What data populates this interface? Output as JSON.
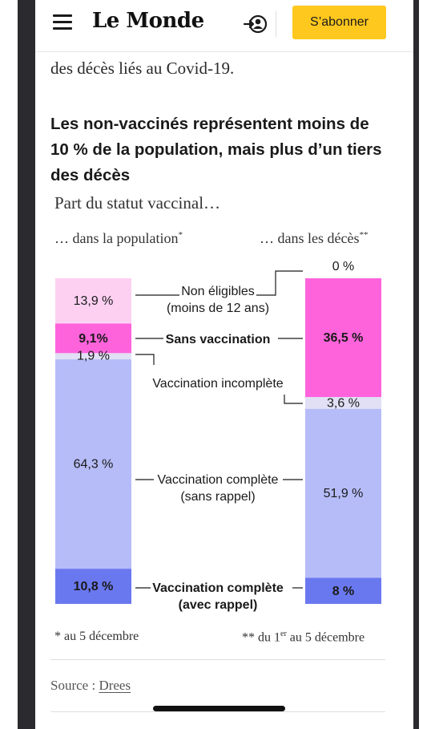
{
  "header": {
    "logo": "Le Monde",
    "subscribe_label": "S’abonner"
  },
  "article": {
    "prev_text": "des décès liés au Covid-19.",
    "title": "Les non-vaccinés représentent moins de 10 % de la population, mais plus d’un tiers des décès",
    "subtitle": "Part du statut vaccinal…",
    "col_left_label": "… dans la population",
    "col_left_mark": "*",
    "col_right_label": "… dans les décès",
    "col_right_mark": "**",
    "note_left": "* au 5 décembre",
    "note_right_prefix": "** du 1",
    "note_right_sup": "er",
    "note_right_suffix": " au 5 décembre",
    "source_label": "Source : ",
    "source_link": "Drees"
  },
  "chart_data": {
    "type": "bar",
    "stacked": true,
    "categories": [
      "… dans la population*",
      "… dans les décès**"
    ],
    "series": [
      {
        "name": "Non éligibles (moins de 12 ans)",
        "values": [
          13.9,
          0
        ],
        "labels": [
          "13,9 %",
          "0 %"
        ],
        "color": "#fdd0f2",
        "bold": false
      },
      {
        "name": "Sans vaccination",
        "values": [
          9.1,
          36.5
        ],
        "labels": [
          "9,1%",
          "36,5 %"
        ],
        "color": "#ff63dc",
        "bold": true
      },
      {
        "name": "Vaccination incomplète",
        "values": [
          1.9,
          3.6
        ],
        "labels": [
          "1,9 %",
          "3,6 %"
        ],
        "color": "#e1e0f5",
        "bold": false
      },
      {
        "name": "Vaccination complète (sans rappel)",
        "values": [
          64.3,
          51.9
        ],
        "labels": [
          "64,3 %",
          "51,9 %"
        ],
        "color": "#b6bcf8",
        "bold": false
      },
      {
        "name": "Vaccination complète (avec rappel)",
        "values": [
          10.8,
          8
        ],
        "labels": [
          "10,8 %",
          "8 %"
        ],
        "color": "#6a78f0",
        "bold": true
      }
    ],
    "legend_lines": [
      [
        "Non éligibles",
        "(moins de 12 ans)"
      ],
      [
        "Sans vaccination"
      ],
      [
        "Vaccination incomplète"
      ],
      [
        "Vaccination complète",
        "(sans rappel)"
      ],
      [
        "Vaccination complète",
        "(avec rappel)"
      ]
    ]
  }
}
